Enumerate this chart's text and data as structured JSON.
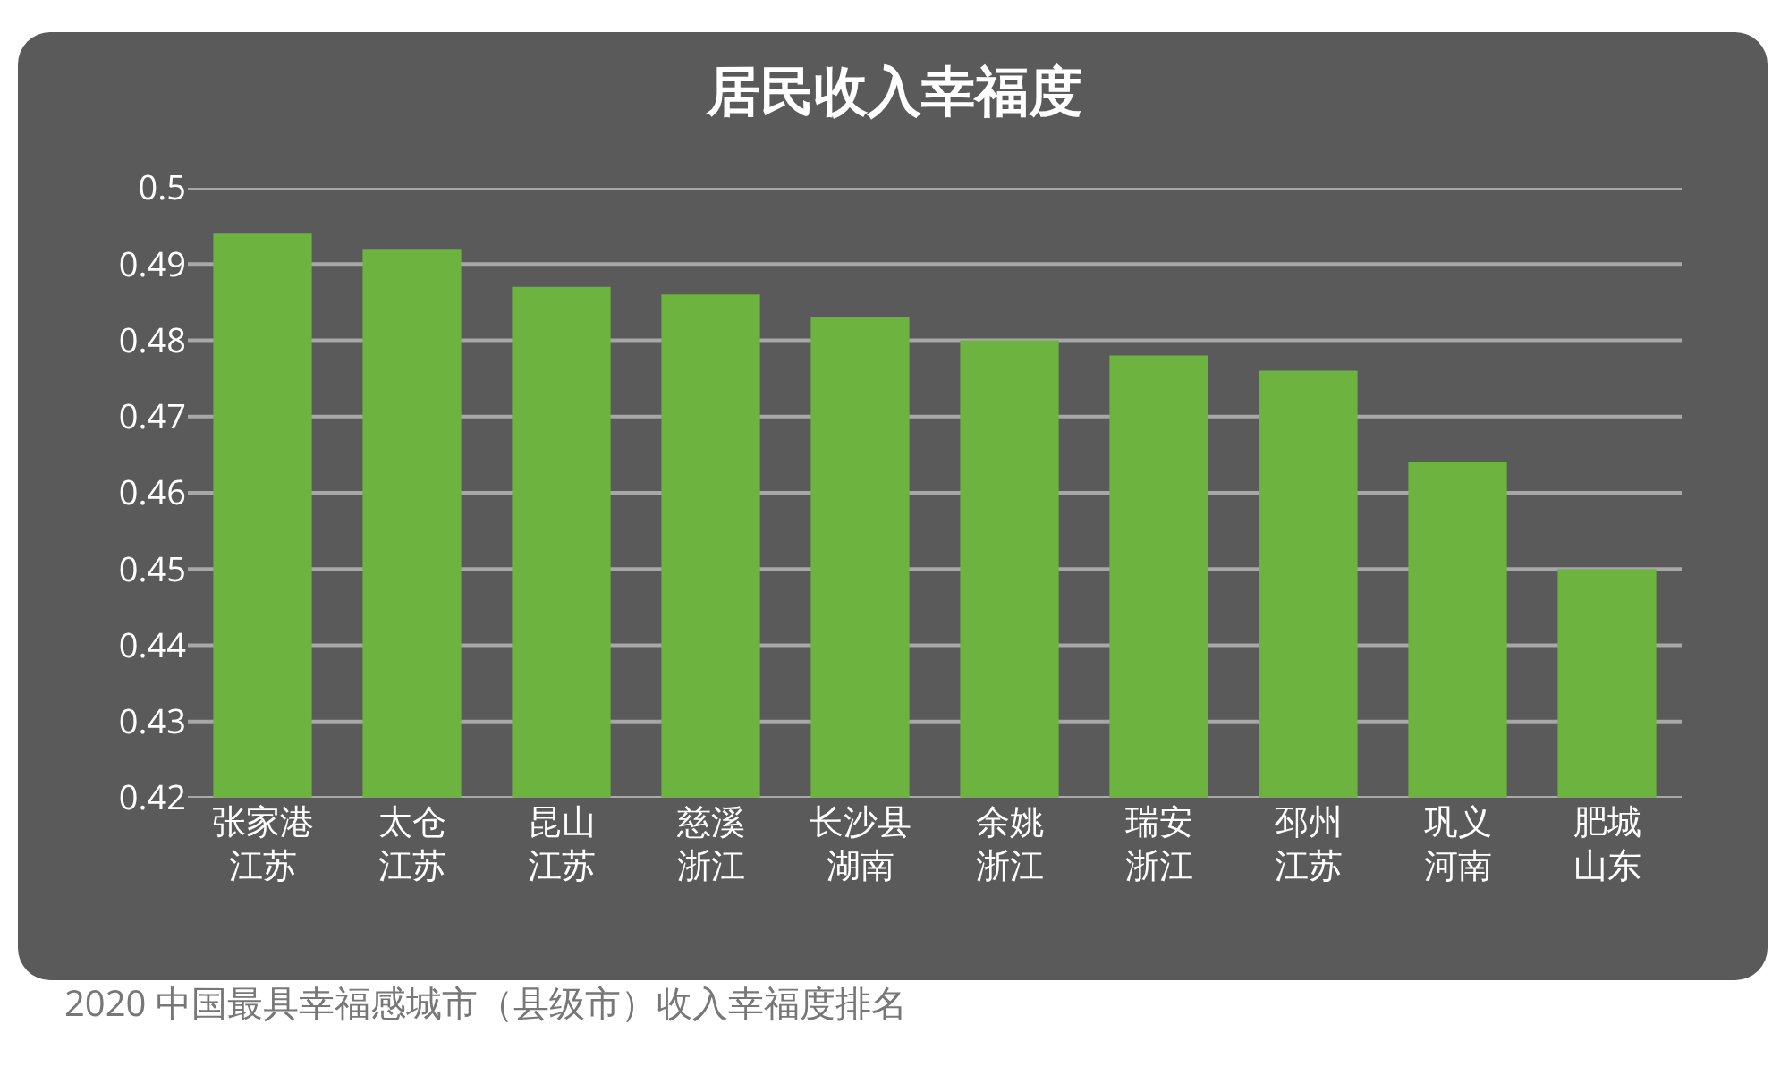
{
  "chart_data": {
    "type": "bar",
    "title": "居民收入幸福度",
    "categories": [
      "张家港江苏",
      "太仓江苏",
      "昆山江苏",
      "慈溪浙江",
      "长沙县湖南",
      "余姚浙江",
      "瑞安浙江",
      "邳州江苏",
      "巩义河南",
      "肥城山东"
    ],
    "values": [
      0.494,
      0.492,
      0.487,
      0.486,
      0.483,
      0.48,
      0.478,
      0.476,
      0.464,
      0.45
    ],
    "color": "#6db33f",
    "ylim": [
      0.42,
      0.5
    ],
    "yticks": [
      0.42,
      0.43,
      0.44,
      0.45,
      0.46,
      0.47,
      0.48,
      0.49,
      0.5
    ],
    "grid": "y",
    "annotations": [
      "2020 中国最具幸福感城市（县级市）收入幸福度排名"
    ]
  }
}
